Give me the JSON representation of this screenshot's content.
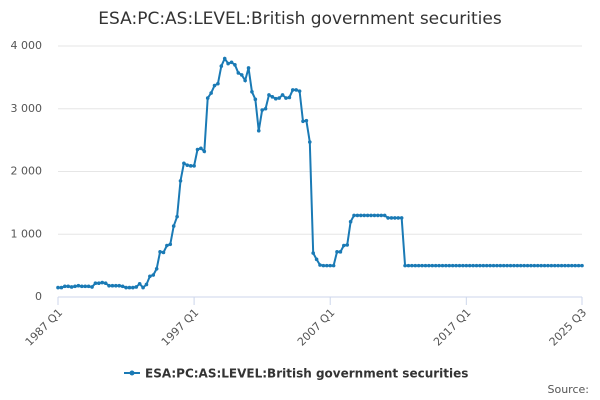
{
  "chart_data": {
    "type": "line",
    "title": "ESA:PC:AS:LEVEL:British government securities",
    "source": "Source:",
    "categories": [
      "1987 Q1",
      null,
      null,
      null,
      null,
      null,
      null,
      null,
      null,
      null,
      null,
      null,
      null,
      null,
      null,
      null,
      null,
      null,
      null,
      null,
      null,
      null,
      null,
      null,
      null,
      null,
      null,
      null,
      null,
      null,
      null,
      null,
      null,
      null,
      null,
      null,
      null,
      null,
      null,
      null,
      "1997 Q1",
      null,
      null,
      null,
      null,
      null,
      null,
      null,
      null,
      null,
      null,
      null,
      null,
      null,
      null,
      null,
      null,
      null,
      null,
      null,
      null,
      null,
      null,
      null,
      null,
      null,
      null,
      null,
      null,
      null,
      null,
      null,
      null,
      null,
      null,
      null,
      null,
      null,
      null,
      null,
      "2007 Q1",
      null,
      null,
      null,
      null,
      null,
      null,
      null,
      null,
      null,
      null,
      null,
      null,
      null,
      null,
      null,
      null,
      null,
      null,
      null,
      null,
      null,
      null,
      null,
      null,
      null,
      null,
      null,
      null,
      null,
      null,
      null,
      null,
      null,
      null,
      null,
      null,
      null,
      null,
      null,
      "2017 Q1",
      null,
      null,
      null,
      null,
      null,
      null,
      null,
      null,
      null,
      null,
      null,
      null,
      null,
      null,
      null,
      null,
      null,
      null,
      null,
      null,
      null,
      null,
      null,
      null,
      null,
      null,
      null,
      null,
      null,
      null,
      null,
      null,
      null,
      "2025 Q3"
    ],
    "series": [
      {
        "name": "ESA:PC:AS:LEVEL:British government securities",
        "color": "#1a7ab5",
        "values": [
          150,
          150,
          170,
          170,
          160,
          170,
          180,
          170,
          170,
          170,
          160,
          220,
          220,
          230,
          220,
          180,
          180,
          180,
          180,
          170,
          150,
          150,
          150,
          160,
          210,
          150,
          200,
          330,
          350,
          450,
          720,
          710,
          820,
          840,
          1130,
          1280,
          1850,
          2130,
          2100,
          2090,
          2090,
          2350,
          2370,
          2320,
          3170,
          3250,
          3370,
          3400,
          3680,
          3800,
          3720,
          3740,
          3700,
          3570,
          3540,
          3450,
          3650,
          3270,
          3150,
          2650,
          2980,
          3000,
          3220,
          3190,
          3160,
          3170,
          3220,
          3170,
          3180,
          3300,
          3300,
          3280,
          2800,
          2810,
          2470,
          700,
          600,
          510,
          500,
          500,
          500,
          500,
          720,
          720,
          820,
          830,
          1200,
          1300,
          1300,
          1300,
          1300,
          1300,
          1300,
          1300,
          1300,
          1300,
          1300,
          1260,
          1260,
          1260,
          1260,
          1260,
          500,
          500,
          500,
          500,
          500,
          500,
          500,
          500,
          500,
          500,
          500,
          500,
          500,
          500,
          500,
          500,
          500,
          500,
          500,
          500,
          500,
          500,
          500,
          500,
          500,
          500,
          500,
          500,
          500,
          500,
          500,
          500,
          500,
          500,
          500,
          500,
          500,
          500,
          500,
          500,
          500,
          500,
          500,
          500,
          500,
          500,
          500,
          500,
          500,
          500,
          500,
          500,
          500
        ]
      }
    ],
    "ylim": [
      0,
      4000
    ],
    "yticks": [
      0,
      {
        "value": 1000,
        "label": "1 000"
      },
      {
        "value": 2000,
        "label": "2 000"
      },
      {
        "value": 3000,
        "label": "3 000"
      },
      {
        "value": 4000,
        "label": "4 000"
      }
    ],
    "grid": true
  }
}
